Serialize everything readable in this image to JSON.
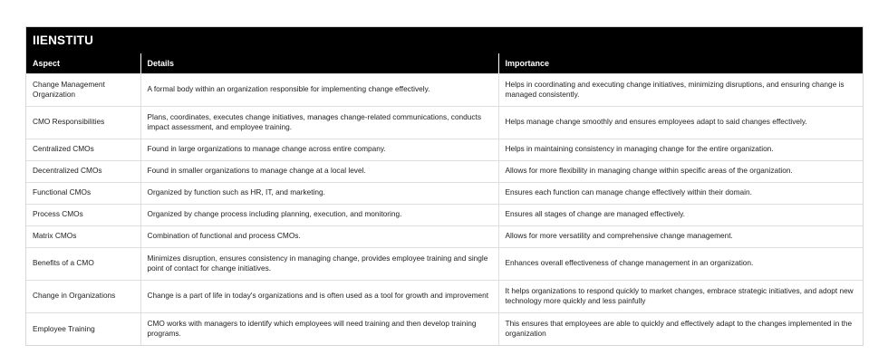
{
  "brand": "IIENSTITU",
  "table": {
    "headers": [
      "Aspect",
      "Details",
      "Importance"
    ],
    "rows": [
      {
        "aspect": "Change Management Organization",
        "details": "A formal body within an organization responsible for implementing change effectively.",
        "importance": "Helps in coordinating and executing change initiatives, minimizing disruptions, and ensuring change is managed consistently."
      },
      {
        "aspect": "CMO Responsibilities",
        "details": "Plans, coordinates, executes change initiatives, manages change-related communications, conducts impact assessment, and employee training.",
        "importance": "Helps manage change smoothly and ensures employees adapt to said changes effectively."
      },
      {
        "aspect": "Centralized CMOs",
        "details": "Found in large organizations to manage change across entire company.",
        "importance": "Helps in maintaining consistency in managing change for the entire organization."
      },
      {
        "aspect": "Decentralized CMOs",
        "details": "Found in smaller organizations to manage change at a local level.",
        "importance": "Allows for more flexibility in managing change within specific areas of the organization."
      },
      {
        "aspect": "Functional CMOs",
        "details": "Organized by function such as HR, IT, and marketing.",
        "importance": "Ensures each function can manage change effectively within their domain."
      },
      {
        "aspect": "Process CMOs",
        "details": "Organized by change process including planning, execution, and monitoring.",
        "importance": "Ensures all stages of change are managed effectively."
      },
      {
        "aspect": "Matrix CMOs",
        "details": "Combination of functional and process CMOs.",
        "importance": "Allows for more versatility and comprehensive change management."
      },
      {
        "aspect": "Benefits of a CMO",
        "details": "Minimizes disruption, ensures consistency in managing change, provides employee training and single point of contact for change initiatives.",
        "importance": "Enhances overall effectiveness of change management in an organization."
      },
      {
        "aspect": "Change in Organizations",
        "details": "Change is a part of life in today's organizations and is often used as a tool for growth and improvement",
        "importance": "It helps organizations to respond quickly to market changes, embrace strategic initiatives, and adopt new technology more quickly and less painfully"
      },
      {
        "aspect": "Employee Training",
        "details": "CMO works with managers to identify which employees will need training and then develop training programs.",
        "importance": "This ensures that employees are able to quickly and effectively adapt to the changes implemented in the organization"
      }
    ]
  }
}
